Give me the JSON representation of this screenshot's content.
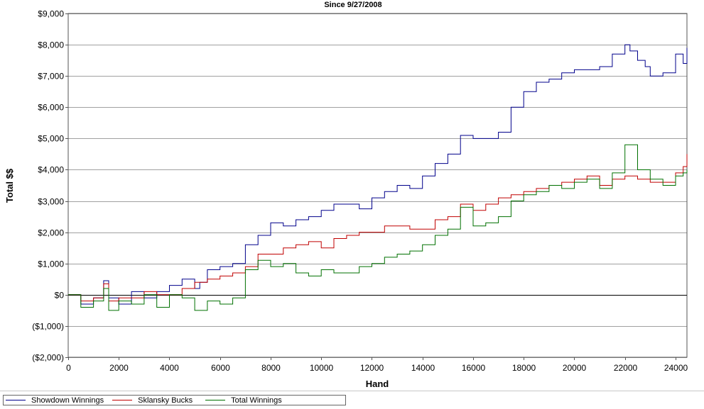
{
  "chart_data": {
    "type": "line",
    "title": "Since 9/27/2008",
    "xlabel": "Hand",
    "ylabel": "Total $$",
    "xlim": [
      0,
      24450
    ],
    "ylim": [
      -2000,
      9000
    ],
    "xticks": [
      0,
      2000,
      4000,
      6000,
      8000,
      10000,
      12000,
      14000,
      16000,
      18000,
      20000,
      22000,
      24000
    ],
    "xtick_labels": [
      "0",
      "2000",
      "4000",
      "6000",
      "8000",
      "10000",
      "12000",
      "14000",
      "16000",
      "18000",
      "20000",
      "22000",
      "24000"
    ],
    "yticks": [
      -2000,
      -1000,
      0,
      1000,
      2000,
      3000,
      4000,
      5000,
      6000,
      7000,
      8000,
      9000
    ],
    "ytick_labels": [
      "($2,000)",
      "($1,000)",
      "$0",
      "$1,000",
      "$2,000",
      "$3,000",
      "$4,000",
      "$5,000",
      "$6,000",
      "$7,000",
      "$8,000",
      "$9,000"
    ],
    "grid": "horizontal",
    "legend_position": "bottom-left",
    "series": [
      {
        "name": "Showdown Winnings",
        "color": "#00008b",
        "x": [
          0,
          500,
          1000,
          1400,
          1600,
          2000,
          2500,
          3000,
          3500,
          4000,
          4500,
          5000,
          5200,
          5500,
          6000,
          6500,
          7000,
          7500,
          8000,
          8500,
          9000,
          9500,
          10000,
          10500,
          11000,
          11500,
          12000,
          12500,
          13000,
          13500,
          13800,
          14000,
          14500,
          15000,
          15500,
          16000,
          16500,
          17000,
          17500,
          18000,
          18500,
          19000,
          19500,
          20000,
          20500,
          21000,
          21500,
          22000,
          22200,
          22500,
          22800,
          23000,
          23500,
          24000,
          24300,
          24450
        ],
        "y": [
          0,
          -300,
          -100,
          450,
          -100,
          -300,
          100,
          -100,
          100,
          300,
          500,
          200,
          400,
          800,
          900,
          1000,
          1600,
          1900,
          2300,
          2200,
          2400,
          2500,
          2700,
          2900,
          2900,
          2750,
          3100,
          3300,
          3500,
          3400,
          3400,
          3800,
          4200,
          4500,
          5100,
          5000,
          5000,
          5200,
          6000,
          6500,
          6800,
          6900,
          7100,
          7200,
          7200,
          7300,
          7700,
          8000,
          7800,
          7500,
          7300,
          7000,
          7100,
          7700,
          7400,
          7900
        ]
      },
      {
        "name": "Sklansky Bucks",
        "color": "#c00000",
        "x": [
          0,
          500,
          1000,
          1400,
          1600,
          2000,
          2500,
          3000,
          3500,
          4000,
          4500,
          5000,
          5500,
          6000,
          6500,
          7000,
          7500,
          8000,
          8500,
          9000,
          9500,
          10000,
          10500,
          11000,
          11500,
          12000,
          12500,
          13000,
          13500,
          14000,
          14500,
          15000,
          15500,
          16000,
          16500,
          17000,
          17500,
          18000,
          18500,
          19000,
          19500,
          20000,
          20500,
          21000,
          21500,
          22000,
          22500,
          23000,
          23500,
          24000,
          24300,
          24450
        ],
        "y": [
          0,
          -200,
          -100,
          350,
          -200,
          -100,
          -100,
          100,
          0,
          0,
          200,
          400,
          500,
          600,
          700,
          900,
          1300,
          1300,
          1500,
          1600,
          1700,
          1500,
          1800,
          1900,
          2000,
          2000,
          2200,
          2200,
          2100,
          2100,
          2400,
          2500,
          2900,
          2700,
          2900,
          3100,
          3200,
          3300,
          3400,
          3500,
          3600,
          3700,
          3800,
          3500,
          3700,
          3800,
          3700,
          3600,
          3600,
          3900,
          4100,
          4500
        ]
      },
      {
        "name": "Total Winnings",
        "color": "#007000",
        "x": [
          0,
          500,
          1000,
          1400,
          1600,
          2000,
          2500,
          3000,
          3500,
          4000,
          4500,
          5000,
          5500,
          6000,
          6500,
          7000,
          7500,
          8000,
          8500,
          9000,
          9500,
          10000,
          10500,
          11000,
          11500,
          12000,
          12500,
          13000,
          13500,
          14000,
          14500,
          15000,
          15500,
          16000,
          16500,
          17000,
          17500,
          18000,
          18500,
          19000,
          19500,
          20000,
          20500,
          21000,
          21500,
          22000,
          22500,
          23000,
          23500,
          24000,
          24300,
          24450
        ],
        "y": [
          0,
          -400,
          -200,
          200,
          -500,
          -200,
          -300,
          0,
          -400,
          0,
          -100,
          -500,
          -200,
          -300,
          -100,
          800,
          1100,
          900,
          1000,
          700,
          600,
          800,
          700,
          700,
          900,
          1000,
          1200,
          1300,
          1400,
          1600,
          1900,
          2100,
          2800,
          2200,
          2300,
          2500,
          3000,
          3200,
          3300,
          3500,
          3400,
          3600,
          3700,
          3400,
          3900,
          4800,
          4000,
          3700,
          3500,
          3800,
          3900,
          4000
        ]
      }
    ]
  }
}
